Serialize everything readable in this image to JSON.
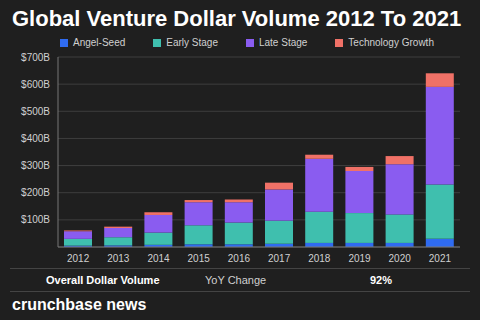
{
  "chart_data": {
    "type": "bar",
    "title": "Global Venture Dollar Volume 2012 To 2021",
    "categories": [
      "2012",
      "2013",
      "2014",
      "2015",
      "2016",
      "2017",
      "2018",
      "2019",
      "2020",
      "2021"
    ],
    "series": [
      {
        "name": "Angel-Seed",
        "color": "#2f6bf0",
        "values": [
          5,
          6,
          8,
          10,
          10,
          12,
          15,
          15,
          15,
          30
        ]
      },
      {
        "name": "Early Stage",
        "color": "#3fbfae",
        "values": [
          25,
          30,
          45,
          70,
          80,
          85,
          115,
          110,
          105,
          200
        ]
      },
      {
        "name": "Late Stage",
        "color": "#8a5cf0",
        "values": [
          28,
          34,
          65,
          85,
          75,
          115,
          195,
          155,
          185,
          360
        ]
      },
      {
        "name": "Technology Growth",
        "color": "#f07167",
        "values": [
          3,
          5,
          10,
          8,
          10,
          25,
          15,
          15,
          30,
          50
        ]
      }
    ],
    "ylim": [
      0,
      700
    ],
    "yticks": [
      {
        "value": 100,
        "label": "$100B"
      },
      {
        "value": 200,
        "label": "$200B"
      },
      {
        "value": 300,
        "label": "$300B"
      },
      {
        "value": 400,
        "label": "$400B"
      },
      {
        "value": 500,
        "label": "$500B"
      },
      {
        "value": 600,
        "label": "$600B"
      },
      {
        "value": 700,
        "label": "$700B"
      }
    ],
    "stacked": true,
    "grid": true,
    "legend": "top",
    "annotations": [
      "Overall Dollar Volume",
      "YoY Change",
      "92%"
    ],
    "source": "crunchbase news"
  }
}
